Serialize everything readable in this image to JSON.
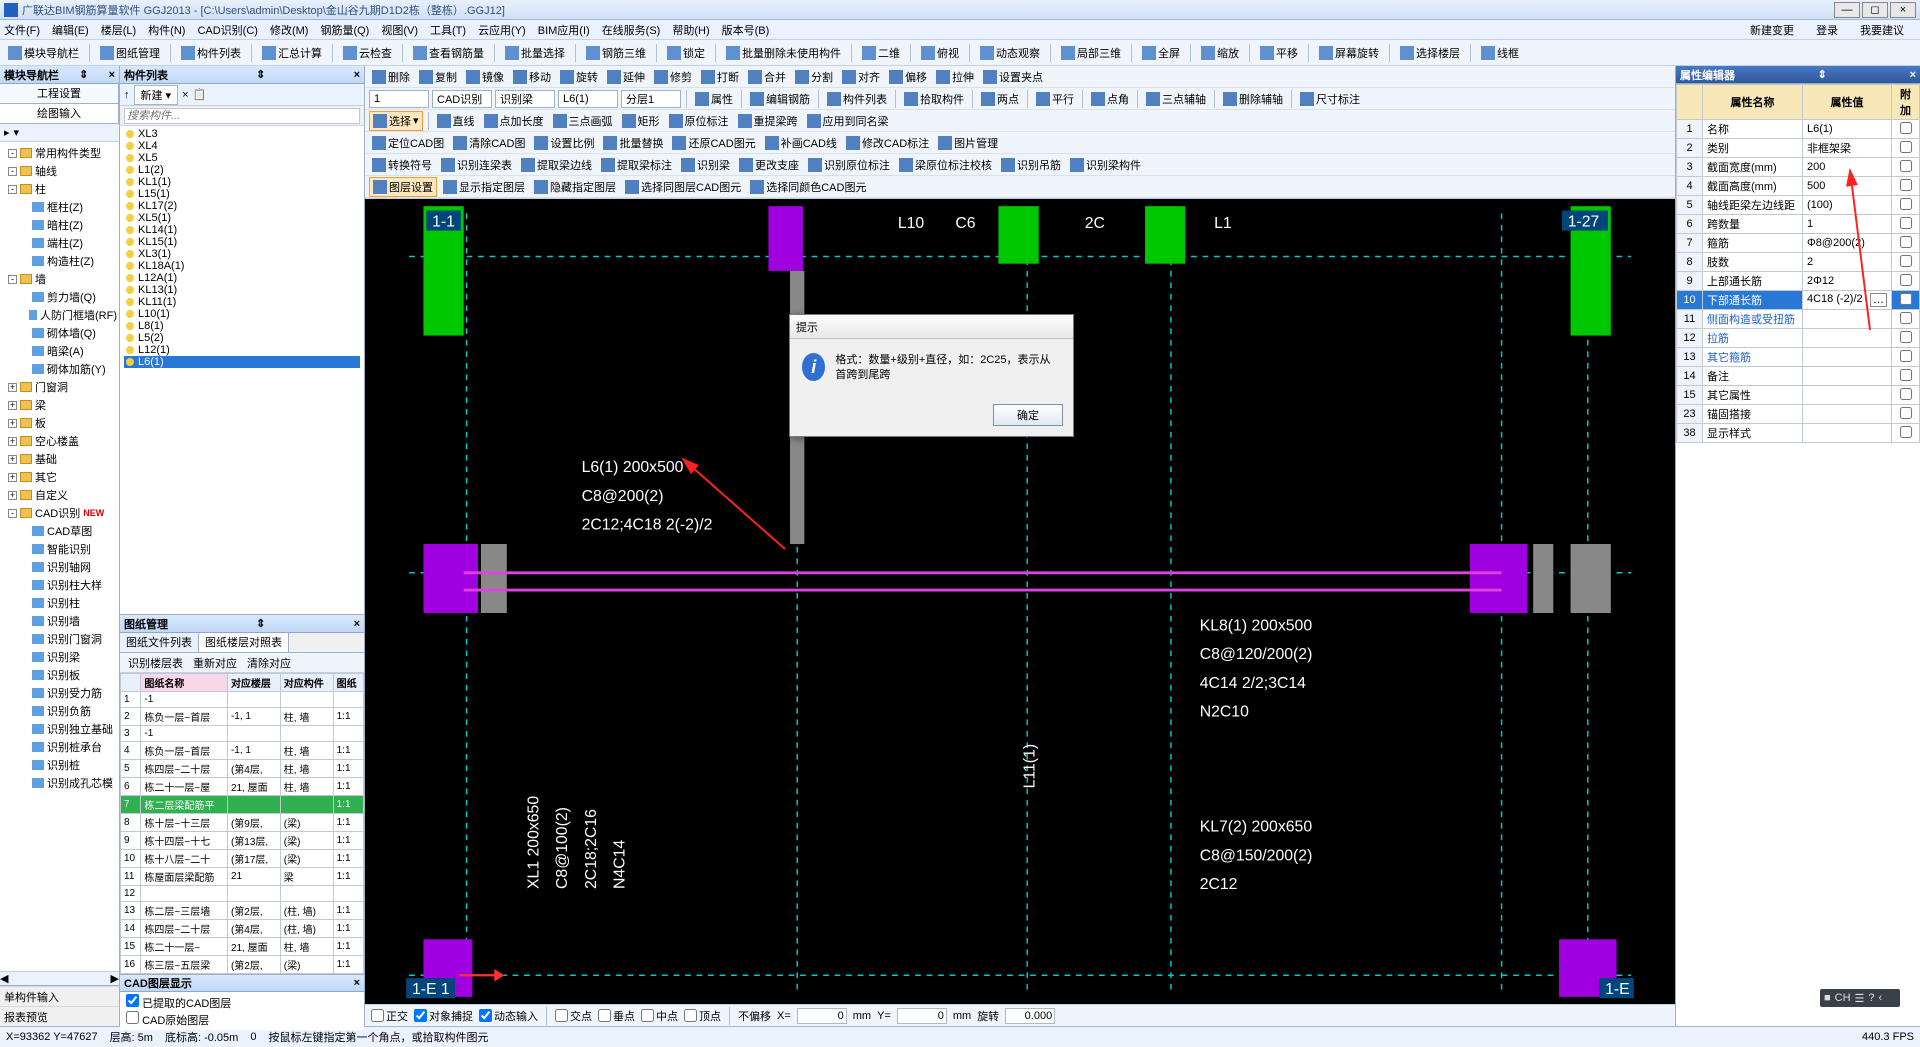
{
  "title": "广联达BIM钢筋算量软件 GGJ2013 - [C:\\Users\\admin\\Desktop\\金山谷九期D1D2栋（整栋）.GGJ12]",
  "menus": [
    "文件(F)",
    "编辑(E)",
    "楼层(L)",
    "构件(N)",
    "CAD识别(C)",
    "修改(M)",
    "钢筋量(Q)",
    "视图(V)",
    "工具(T)",
    "云应用(Y)",
    "BIM应用(I)",
    "在线服务(S)",
    "帮助(H)",
    "版本号(B)"
  ],
  "menuRightBtns": [
    "新建变更",
    "登录",
    "我要建议"
  ],
  "toolbarTop": [
    "模块导航栏",
    "图纸管理",
    "构件列表",
    "汇总计算",
    "云检查",
    "查看钢筋量",
    "批量选择",
    "钢筋三维",
    "锁定",
    "批量删除未使用构件",
    "二维",
    "俯视",
    "动态观察",
    "局部三维",
    "全屏",
    "缩放",
    "平移",
    "屏幕旋转",
    "选择楼层",
    "线框"
  ],
  "editToolbar": [
    "删除",
    "复制",
    "镜像",
    "移动",
    "旋转",
    "延伸",
    "修剪",
    "打断",
    "合并",
    "分割",
    "对齐",
    "偏移",
    "拉伸",
    "设置夹点"
  ],
  "leftPanel": {
    "title": "模块导航栏",
    "tabs": [
      "工程设置",
      "绘图输入"
    ],
    "activeTab": 1
  },
  "tree": [
    {
      "d": 0,
      "t": "-",
      "f": 1,
      "label": "常用构件类型"
    },
    {
      "d": 0,
      "t": "-",
      "f": 1,
      "label": "轴线"
    },
    {
      "d": 0,
      "t": "-",
      "f": 1,
      "label": "柱"
    },
    {
      "d": 1,
      "f": 0,
      "ico": "z",
      "label": "框柱(Z)"
    },
    {
      "d": 1,
      "f": 0,
      "ico": "z",
      "label": "暗柱(Z)"
    },
    {
      "d": 1,
      "f": 0,
      "ico": "z",
      "label": "端柱(Z)"
    },
    {
      "d": 1,
      "f": 0,
      "ico": "z",
      "label": "构造柱(Z)"
    },
    {
      "d": 0,
      "t": "-",
      "f": 1,
      "label": "墙"
    },
    {
      "d": 1,
      "f": 0,
      "ico": "q",
      "label": "剪力墙(Q)"
    },
    {
      "d": 1,
      "f": 0,
      "ico": "q",
      "label": "人防门框墙(RF)"
    },
    {
      "d": 1,
      "f": 0,
      "ico": "q",
      "label": "砌体墙(Q)"
    },
    {
      "d": 1,
      "f": 0,
      "ico": "q",
      "label": "暗梁(A)"
    },
    {
      "d": 1,
      "f": 0,
      "ico": "q",
      "label": "砌体加筋(Y)"
    },
    {
      "d": 0,
      "t": "+",
      "f": 1,
      "label": "门窗洞"
    },
    {
      "d": 0,
      "t": "+",
      "f": 1,
      "label": "梁"
    },
    {
      "d": 0,
      "t": "+",
      "f": 1,
      "label": "板"
    },
    {
      "d": 0,
      "t": "+",
      "f": 1,
      "label": "空心楼盖"
    },
    {
      "d": 0,
      "t": "+",
      "f": 1,
      "label": "基础"
    },
    {
      "d": 0,
      "t": "+",
      "f": 1,
      "label": "其它"
    },
    {
      "d": 0,
      "t": "+",
      "f": 1,
      "label": "自定义"
    },
    {
      "d": 0,
      "t": "-",
      "f": 1,
      "label": "CAD识别",
      "new": 1
    },
    {
      "d": 1,
      "f": 0,
      "ico": "c",
      "label": "CAD草图"
    },
    {
      "d": 1,
      "f": 0,
      "ico": "c",
      "label": "智能识别"
    },
    {
      "d": 1,
      "f": 0,
      "ico": "c",
      "label": "识别轴网"
    },
    {
      "d": 1,
      "f": 0,
      "ico": "c",
      "label": "识别柱大样"
    },
    {
      "d": 1,
      "f": 0,
      "ico": "c",
      "label": "识别柱"
    },
    {
      "d": 1,
      "f": 0,
      "ico": "c",
      "label": "识别墙"
    },
    {
      "d": 1,
      "f": 0,
      "ico": "c",
      "label": "识别门窗洞"
    },
    {
      "d": 1,
      "f": 0,
      "ico": "c",
      "label": "识别梁"
    },
    {
      "d": 1,
      "f": 0,
      "ico": "c",
      "label": "识别板"
    },
    {
      "d": 1,
      "f": 0,
      "ico": "c",
      "label": "识别受力筋"
    },
    {
      "d": 1,
      "f": 0,
      "ico": "c",
      "label": "识别负筋"
    },
    {
      "d": 1,
      "f": 0,
      "ico": "c",
      "label": "识别独立基础"
    },
    {
      "d": 1,
      "f": 0,
      "ico": "c",
      "label": "识别桩承台"
    },
    {
      "d": 1,
      "f": 0,
      "ico": "c",
      "label": "识别桩"
    },
    {
      "d": 1,
      "f": 0,
      "ico": "c",
      "label": "识别成孔芯模"
    }
  ],
  "leftBot": [
    "单构件输入",
    "报表预览"
  ],
  "memberPanel": {
    "title": "构件列表",
    "newBtn": "新建",
    "searchPlaceholder": "搜索构件..."
  },
  "memberList": [
    "XL3",
    "XL4",
    "XL5",
    "L1(2)",
    "KL1(1)",
    "L15(1)",
    "KL17(2)",
    "XL5(1)",
    "KL14(1)",
    "KL15(1)",
    "XL3(1)",
    "KL18A(1)",
    "L12A(1)",
    "KL13(1)",
    "KL11(1)",
    "L10(1)",
    "L8(1)",
    "L5(2)",
    "L12(1)",
    "L6(1)"
  ],
  "memberSelected": 19,
  "drawMgr": {
    "title": "图纸管理",
    "tabs": [
      "图纸文件列表",
      "图纸楼层对照表"
    ],
    "activeTab": 1,
    "toolbar": [
      "识别楼层表",
      "重新对应",
      "清除对应"
    ],
    "columns": [
      "",
      "图纸名称",
      "对应楼层",
      "对应构件",
      "图纸"
    ],
    "rows": [
      [
        "1",
        "  -1",
        "",
        "",
        ""
      ],
      [
        "2",
        "    栋负一层~首层",
        "-1, 1",
        "柱, 墙",
        "1:1"
      ],
      [
        "3",
        "  -1",
        "",
        "",
        ""
      ],
      [
        "4",
        "    栋负一层~首层",
        "-1, 1",
        "柱, 墙",
        "1:1"
      ],
      [
        "5",
        "    栋四层~二十层",
        "(第4层,",
        "柱, 墙",
        "1:1"
      ],
      [
        "6",
        "    栋二十一层~屋",
        "21, 屋面",
        "柱, 墙",
        "1:1"
      ],
      [
        "7",
        "    栋二层梁配筋平",
        "",
        "",
        "1:1"
      ],
      [
        "8",
        "    栋十层~十三层",
        "(第9层,",
        "(梁)",
        "1:1"
      ],
      [
        "9",
        "    栋十四层~十七",
        "(第13层,",
        "(梁)",
        "1:1"
      ],
      [
        "10",
        "    栋十八层~二十",
        "(第17层,",
        "(梁)",
        "1:1"
      ],
      [
        "11",
        "    栋屋面层梁配筋",
        "21",
        "梁",
        "1:1"
      ],
      [
        "12",
        "",
        "",
        "",
        ""
      ],
      [
        "13",
        "    栋二层~三层墙",
        "(第2层,",
        "(柱, 墙)",
        "1:1"
      ],
      [
        "14",
        "    栋四层~二十层",
        "(第4层,",
        "(柱, 墙)",
        "1:1"
      ],
      [
        "15",
        "    栋二十一层~",
        "21, 屋面",
        "柱, 墙",
        "1:1"
      ],
      [
        "16",
        "    栋三层~五层梁",
        "(第2层,",
        "(梁)",
        "1:1"
      ],
      [
        "17",
        "    栋十层~十三层",
        "(第9层,",
        "(梁)",
        "1:1"
      ]
    ],
    "selectedRow": 6
  },
  "cadLayer": {
    "title": "CAD图层显示",
    "options": [
      "已提取的CAD图层",
      "CAD原始图层"
    ],
    "checked": 0
  },
  "canvasToolbars": {
    "row2": {
      "sels": [
        "1",
        "CAD识别",
        "识别梁",
        "L6(1)",
        "分层1"
      ],
      "btns": [
        "属性",
        "编辑钢筋",
        "构件列表",
        "拾取构件",
        "两点",
        "平行",
        "点角",
        "三点辅轴",
        "删除辅轴",
        "尺寸标注"
      ]
    },
    "row3": {
      "pressed": "选择",
      "btns": [
        "直线",
        "点加长度",
        "三点画弧",
        "矩形",
        "原位标注",
        "重提梁跨",
        "应用到同名梁"
      ]
    },
    "row4": [
      "定位CAD图",
      "清除CAD图",
      "设置比例",
      "批量替换",
      "还原CAD图元",
      "补画CAD线",
      "修改CAD标注",
      "图片管理"
    ],
    "row5": [
      "转换符号",
      "识别连梁表",
      "提取梁边线",
      "提取梁标注",
      "识别梁",
      "更改支座",
      "识别原位标注",
      "梁原位标注校核",
      "识别吊筋",
      "识别梁构件"
    ],
    "row6": [
      "图层设置",
      "显示指定图层",
      "隐藏指定图层",
      "选择同图层CAD图元",
      "选择同颜色CAD图元"
    ]
  },
  "canvasLabels": {
    "l6": [
      "L6(1) 200x500",
      "C8@200(2)",
      "2C12;4C18 2(-2)/2"
    ],
    "kl8": [
      "KL8(1) 200x500",
      "C8@120/200(2)",
      "4C14 2/2;3C14",
      "N2C10"
    ],
    "kl7": [
      "KL7(2) 200x650",
      "C8@150/200(2)",
      "2C12"
    ],
    "xl1": [
      "XL1 200x650",
      "C8@100(2)",
      "2C18;2C16",
      "N4C14"
    ],
    "l11": "L11(1)",
    "top": [
      "L10",
      "C6",
      "2C",
      "L1"
    ],
    "corners": [
      "1-1",
      "1-27",
      "1-E 1",
      "1-E"
    ]
  },
  "dialog": {
    "title": "提示",
    "text": "格式：数量+级别+直径，如：2C25，表示从首跨到尾跨",
    "ok": "确定"
  },
  "propEditor": {
    "title": "属性编辑器",
    "cols": [
      "属性名称",
      "属性值",
      "附加"
    ],
    "rows": [
      {
        "n": "1",
        "name": "名称",
        "val": "L6(1)"
      },
      {
        "n": "2",
        "name": "类别",
        "val": "非框架梁"
      },
      {
        "n": "3",
        "name": "截面宽度(mm)",
        "val": "200"
      },
      {
        "n": "4",
        "name": "截面高度(mm)",
        "val": "500"
      },
      {
        "n": "5",
        "name": "轴线距梁左边线距",
        "val": "(100)"
      },
      {
        "n": "6",
        "name": "跨数量",
        "val": "1"
      },
      {
        "n": "7",
        "name": "箍筋",
        "val": "Φ8@200(2)"
      },
      {
        "n": "8",
        "name": "肢数",
        "val": "2"
      },
      {
        "n": "9",
        "name": "上部通长筋",
        "val": "2Φ12"
      },
      {
        "n": "10",
        "name": "下部通长筋",
        "val": "4C18 (-2)/2",
        "sel": 1,
        "dots": 1
      },
      {
        "n": "11",
        "name": "侧面构造或受扭筋",
        "val": "",
        "blue": 1
      },
      {
        "n": "12",
        "name": "拉筋",
        "val": "",
        "blue": 1
      },
      {
        "n": "13",
        "name": "其它箍筋",
        "val": "",
        "blue": 1
      },
      {
        "n": "14",
        "name": "备注",
        "val": ""
      },
      {
        "n": "15",
        "plus": "+",
        "name": "其它属性",
        "val": ""
      },
      {
        "n": "23",
        "plus": "+",
        "name": "锚固搭接",
        "val": ""
      },
      {
        "n": "38",
        "plus": "+",
        "name": "显示样式",
        "val": ""
      }
    ]
  },
  "canvasStatus": {
    "items": [
      "正交",
      "对象捕捉",
      "动态输入",
      "交点",
      "垂点",
      "中点",
      "顶点"
    ],
    "checked": [
      1,
      2
    ],
    "offset": "不偏移",
    "x": "0",
    "y": "0",
    "rot": "0.000"
  },
  "statusbar": {
    "coord": "X=93362 Y=47627",
    "floor": "层高: 5m",
    "bottom": "底标高: -0.05m",
    "val": "0",
    "hint": "按鼠标左键指定第一个角点，或拾取构件图元",
    "fps": "440.3 FPS"
  },
  "langbar": [
    "■",
    "CH",
    "☰",
    "?",
    "‹"
  ]
}
